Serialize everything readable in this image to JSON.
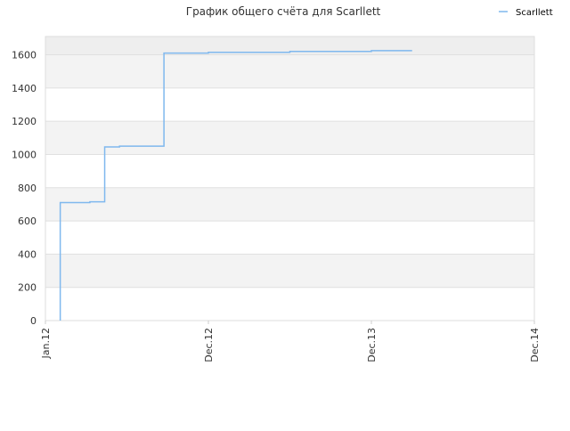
{
  "chart_data": {
    "type": "line",
    "title": "График общего счёта для Scarllett",
    "x": [
      "2012-02",
      "2012-02",
      "2012-02",
      "2012-04",
      "2012-05",
      "2012-05",
      "2012-05",
      "2012-05",
      "2012-06",
      "2012-09",
      "2012-09",
      "2012-12",
      "2013-06",
      "2013-12",
      "2014-03"
    ],
    "series": [
      {
        "name": "Scarllett",
        "color": "#7fb8ee",
        "values": [
          0,
          680,
          710,
          715,
          900,
          990,
          1040,
          1045,
          1050,
          1060,
          1610,
          1615,
          1620,
          1625,
          1625
        ]
      }
    ],
    "xlim": [
      "2012-01",
      "2014-12"
    ],
    "xticks": [
      {
        "value": "2012-01",
        "label": "Jan.12"
      },
      {
        "value": "2012-12",
        "label": "Dec.12"
      },
      {
        "value": "2013-12",
        "label": "Dec.13"
      },
      {
        "value": "2014-12",
        "label": "Dec.14"
      }
    ],
    "ylim": [
      0,
      1710
    ],
    "yticks": [
      0,
      200,
      400,
      600,
      800,
      1000,
      1200,
      1400,
      1600
    ],
    "grid": true,
    "legend": "top-right",
    "step": true
  }
}
